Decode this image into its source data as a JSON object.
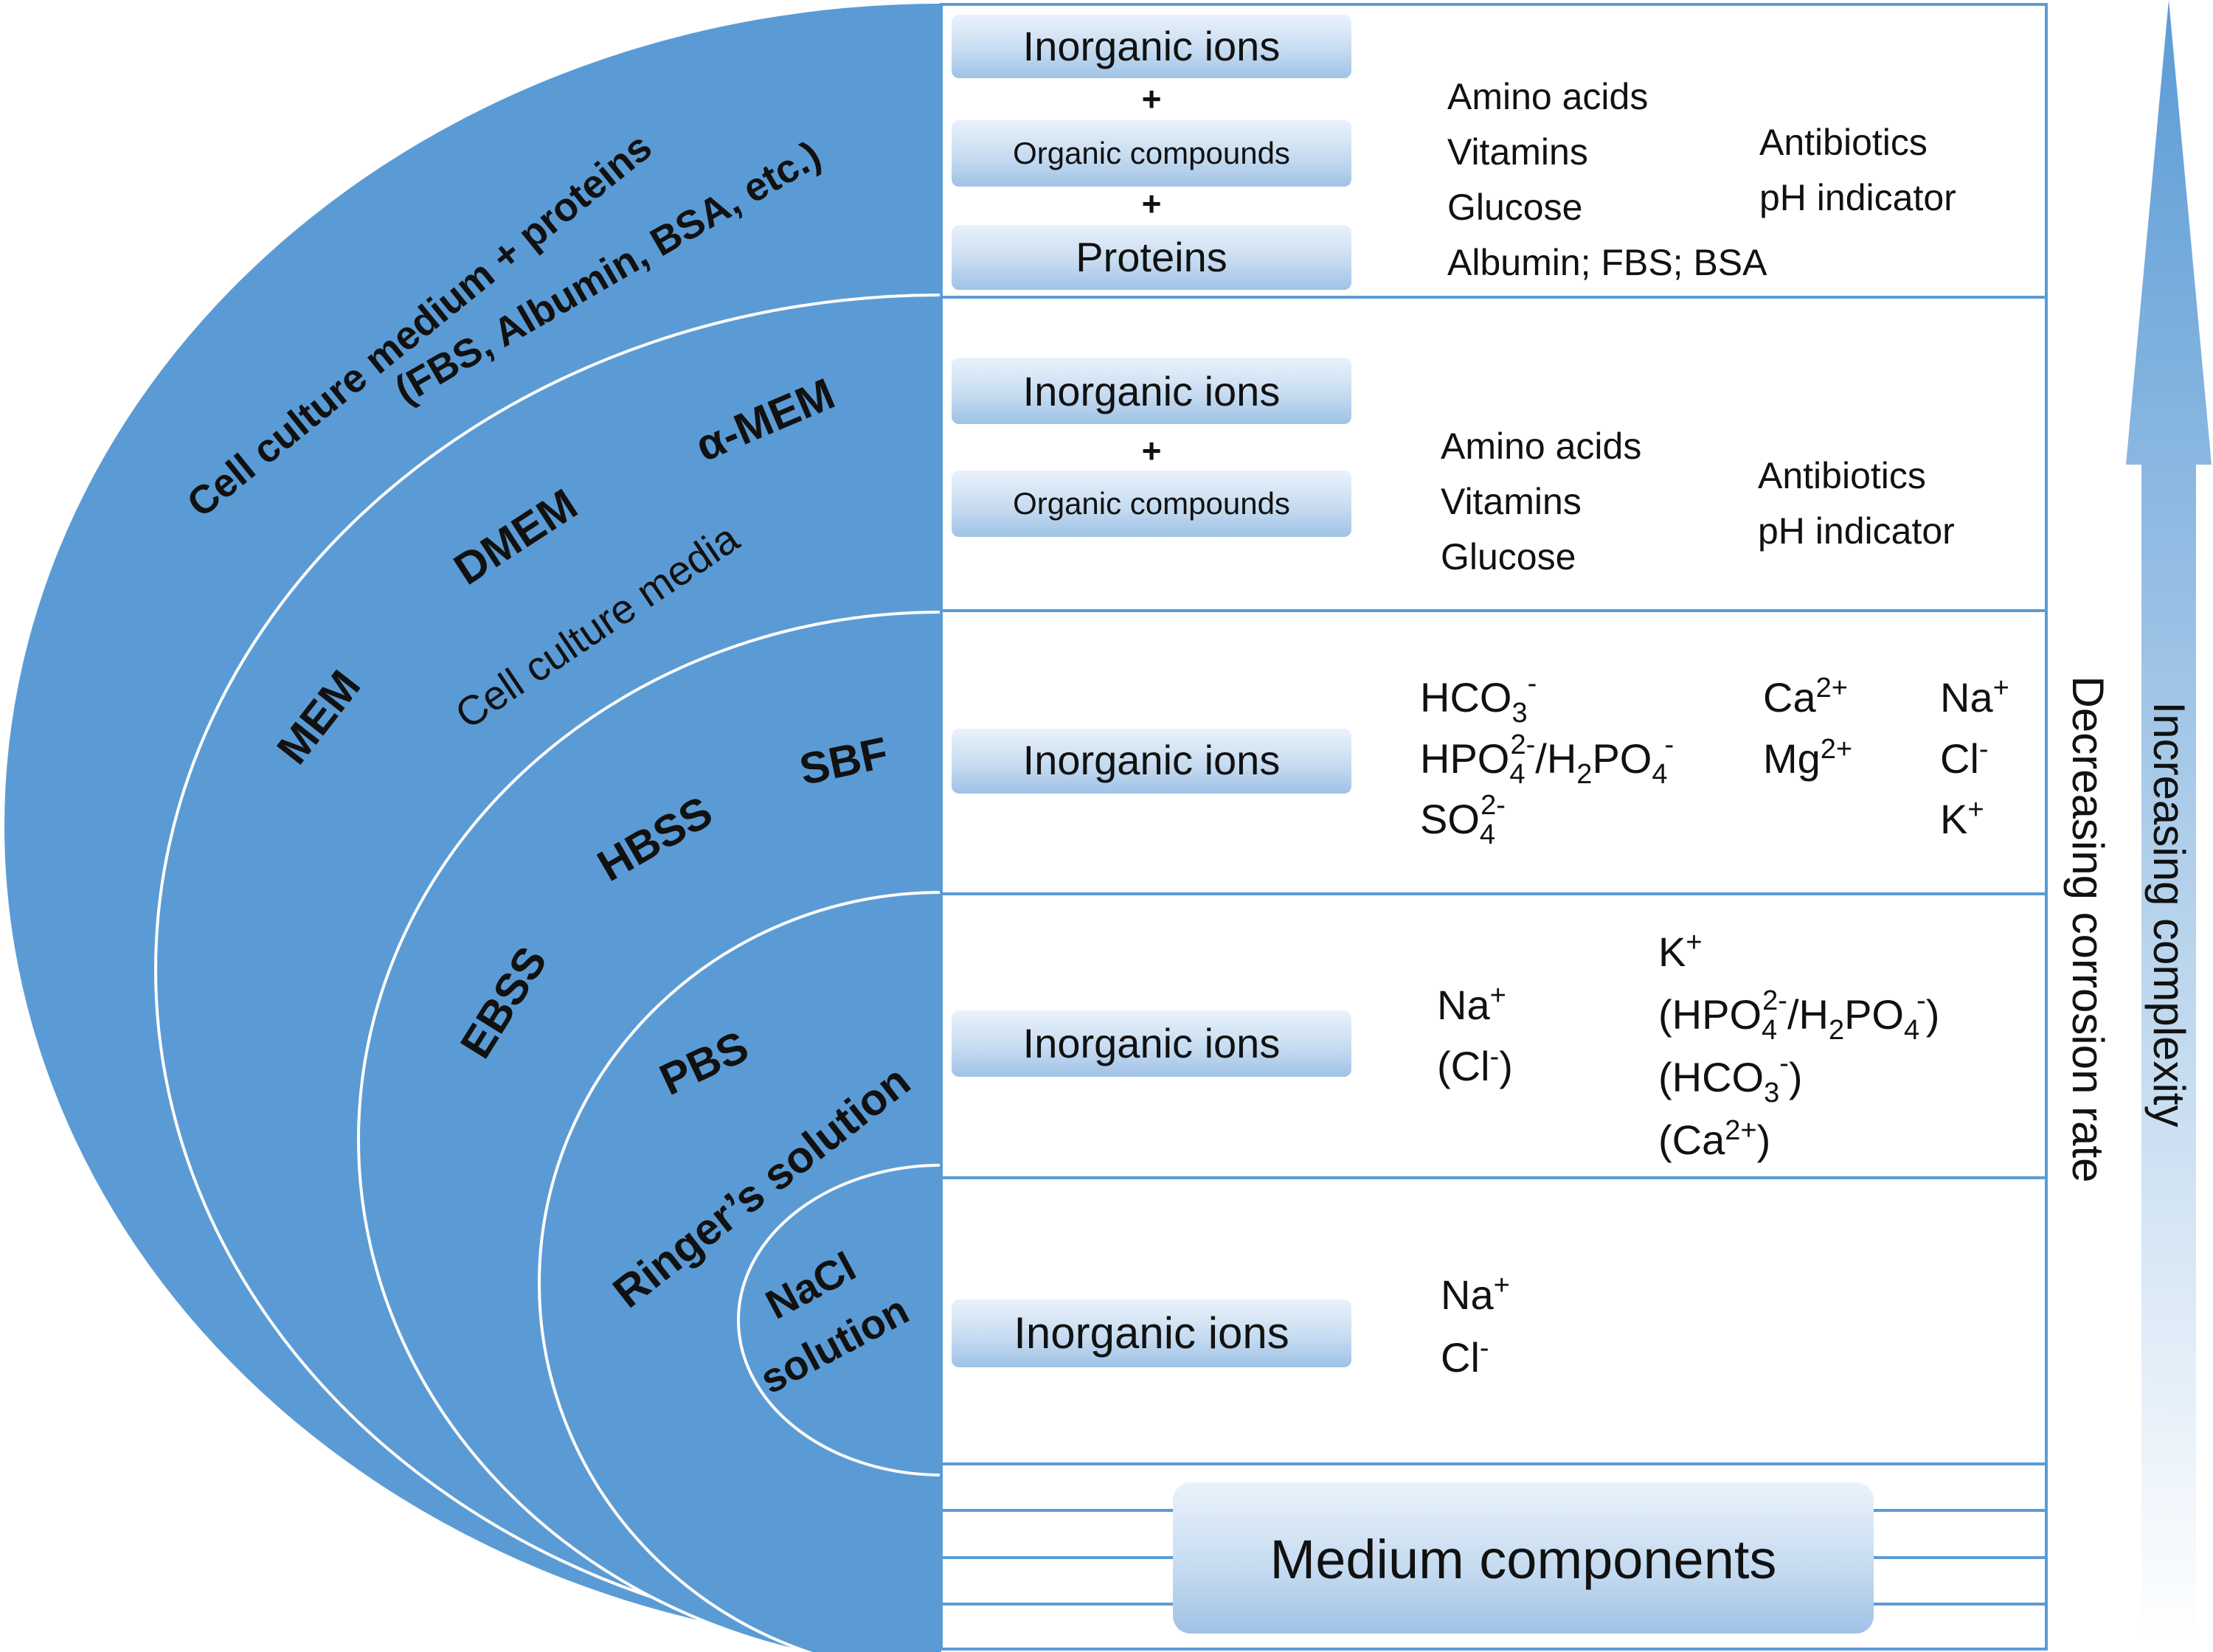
{
  "colors": {
    "ring_fill": "#5b9bd5",
    "ring_stroke": "#ffffff",
    "row_border": "#5b9bd5",
    "pill_top": "#e7f0fa",
    "pill_bottom": "#a9c8e8",
    "arrow_top": "#5b9bd5",
    "arrow_bottom": "#ffffff",
    "text": "#111111"
  },
  "rings": {
    "labels": {
      "cell_culture_proteins_1": "Cell culture medium + proteins",
      "cell_culture_proteins_2": "(FBS, Albumin, BSA, etc.)",
      "alpha_mem": "α-MEM",
      "dmem": "DMEM",
      "cell_culture_media": "Cell culture media",
      "mem": "MEM",
      "sbf": "SBF",
      "hbss": "HBSS",
      "ebss": "EBSS",
      "pbs": "PBS",
      "ringers": "Ringer’s solution",
      "nacl_1": "NaCl",
      "nacl_2": "solution"
    }
  },
  "rows": {
    "row1": {
      "pill_1": "Inorganic ions",
      "plus_1": "+",
      "pill_2": "Organic compounds",
      "plus_2": "+",
      "pill_3": "Proteins",
      "col1": [
        "Amino acids",
        "Vitamins",
        "Glucose",
        "Albumin; FBS; BSA"
      ],
      "col2": [
        "Antibiotics",
        "pH indicator"
      ]
    },
    "row2": {
      "pill_1": "Inorganic ions",
      "plus_1": "+",
      "pill_2": "Organic compounds",
      "col1": [
        "Amino acids",
        "Vitamins",
        "Glucose"
      ],
      "col2": [
        "Antibiotics",
        "pH indicator"
      ]
    },
    "row3": {
      "pill": "Inorganic ions",
      "hco3": "HCO",
      "hpo4": "HPO",
      "h2po4": "/H",
      "h2po4b": "PO",
      "so4": "SO",
      "ca": "Ca",
      "mg": "Mg",
      "na": "Na",
      "cl": "Cl",
      "k": "K"
    },
    "row4": {
      "pill": "Inorganic ions",
      "na": "Na",
      "cl_open": "(Cl",
      "cl_close": ")",
      "k": "K",
      "hpo4_open": "(HPO",
      "h2po4": "/H",
      "h2po4b": "PO",
      "hpo4_close": ")",
      "hco3_open": "(HCO",
      "hco3_close": ")",
      "ca_open": "(Ca",
      "ca_close": ")"
    },
    "row5": {
      "pill": "Inorganic ions",
      "na": "Na",
      "cl": "Cl"
    }
  },
  "footer": {
    "label": "Medium components"
  },
  "arrows": {
    "decreasing": "Decreasing corrosion rate",
    "increasing": "Increasing complexity"
  },
  "chem": {
    "sub_2": "2",
    "sub_3": "3",
    "sub_4": "4",
    "sup_minus": "-",
    "sup_plus": "+",
    "sup_2minus": "2-",
    "sup_2plus": "2+"
  }
}
